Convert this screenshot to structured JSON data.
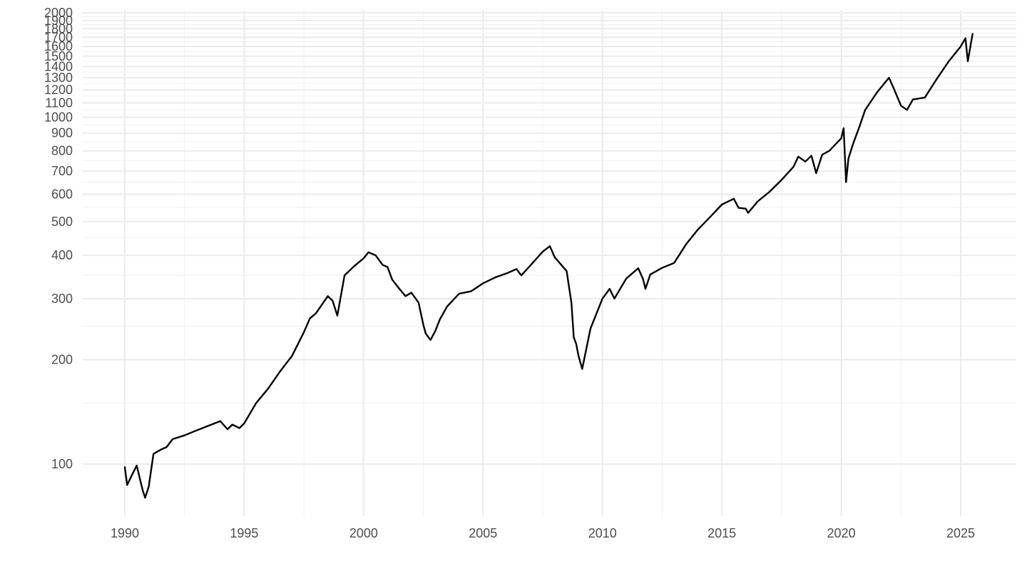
{
  "chart_data": {
    "type": "line",
    "title": "",
    "xlabel": "",
    "ylabel": "",
    "y_scale": "log",
    "grid": true,
    "legend": "none",
    "xlim": [
      1988.2,
      2027.3
    ],
    "ylim": [
      80,
      2020
    ],
    "x_ticks": [
      {
        "value": 1990,
        "label": "1990"
      },
      {
        "value": 1995,
        "label": "1995"
      },
      {
        "value": 2000,
        "label": "2000"
      },
      {
        "value": 2005,
        "label": "2005"
      },
      {
        "value": 2010,
        "label": "2010"
      },
      {
        "value": 2015,
        "label": "2015"
      },
      {
        "value": 2020,
        "label": "2020"
      },
      {
        "value": 2025,
        "label": "2025"
      }
    ],
    "x_minor_ticks": [
      1992.5,
      1997.5,
      2002.5,
      2007.5,
      2012.5,
      2017.5,
      2022.5,
      2027.5
    ],
    "y_ticks": [
      {
        "value": 100,
        "label": "100"
      },
      {
        "value": 200,
        "label": "200"
      },
      {
        "value": 300,
        "label": "300"
      },
      {
        "value": 400,
        "label": "400"
      },
      {
        "value": 500,
        "label": "500"
      },
      {
        "value": 600,
        "label": "600"
      },
      {
        "value": 700,
        "label": "700"
      },
      {
        "value": 800,
        "label": "800"
      },
      {
        "value": 900,
        "label": "900"
      },
      {
        "value": 1000,
        "label": "1000"
      },
      {
        "value": 1100,
        "label": "1100"
      },
      {
        "value": 1200,
        "label": "1200"
      },
      {
        "value": 1300,
        "label": "1300"
      },
      {
        "value": 1400,
        "label": "1400"
      },
      {
        "value": 1500,
        "label": "1500"
      },
      {
        "value": 1600,
        "label": "1600"
      },
      {
        "value": 1700,
        "label": "1700"
      },
      {
        "value": 1800,
        "label": "1800"
      },
      {
        "value": 1900,
        "label": "1900"
      },
      {
        "value": 2000,
        "label": "2000"
      }
    ],
    "y_minor_ticks": [
      150,
      250,
      350,
      450,
      550,
      650,
      750,
      850,
      950,
      1050,
      1150,
      1250,
      1350,
      1450,
      1550,
      1650,
      1750,
      1850,
      1950
    ],
    "series": [
      {
        "color": "#000000",
        "x": [
          1990.0,
          1990.1,
          1990.3,
          1990.5,
          1990.75,
          1990.85,
          1991.0,
          1991.2,
          1991.5,
          1991.75,
          1992.0,
          1992.5,
          1993.0,
          1993.5,
          1994.0,
          1994.3,
          1994.5,
          1994.8,
          1995.0,
          1995.5,
          1996.0,
          1996.5,
          1997.0,
          1997.5,
          1997.75,
          1998.0,
          1998.5,
          1998.7,
          1998.9,
          1999.2,
          1999.6,
          2000.0,
          2000.2,
          2000.5,
          2000.8,
          2001.0,
          2001.2,
          2001.5,
          2001.75,
          2002.0,
          2002.3,
          2002.5,
          2002.6,
          2002.8,
          2003.0,
          2003.2,
          2003.5,
          2004.0,
          2004.5,
          2005.0,
          2005.5,
          2006.0,
          2006.4,
          2006.6,
          2007.0,
          2007.5,
          2007.8,
          2008.0,
          2008.5,
          2008.7,
          2008.8,
          2008.9,
          2009.0,
          2009.15,
          2009.5,
          2010.0,
          2010.3,
          2010.5,
          2011.0,
          2011.5,
          2011.7,
          2011.8,
          2012.0,
          2012.5,
          2013.0,
          2013.5,
          2014.0,
          2014.5,
          2015.0,
          2015.5,
          2015.7,
          2016.0,
          2016.1,
          2016.5,
          2017.0,
          2017.5,
          2018.0,
          2018.2,
          2018.5,
          2018.75,
          2018.95,
          2019.2,
          2019.5,
          2020.0,
          2020.1,
          2020.2,
          2020.3,
          2020.5,
          2020.75,
          2021.0,
          2021.5,
          2022.0,
          2022.2,
          2022.5,
          2022.75,
          2023.0,
          2023.5,
          2024.0,
          2024.5,
          2025.0,
          2025.2,
          2025.3,
          2025.5
        ],
        "y": [
          98,
          87,
          93,
          99,
          84,
          80,
          86,
          107,
          110,
          112,
          118,
          121,
          125,
          129,
          133,
          126,
          130,
          127,
          131,
          150,
          165,
          185,
          205,
          240,
          263,
          272,
          305,
          296,
          268,
          350,
          372,
          392,
          408,
          400,
          375,
          370,
          340,
          320,
          305,
          312,
          292,
          252,
          238,
          228,
          242,
          262,
          285,
          310,
          315,
          332,
          345,
          355,
          365,
          350,
          375,
          410,
          425,
          395,
          360,
          292,
          232,
          222,
          205,
          188,
          246,
          300,
          320,
          300,
          343,
          367,
          342,
          320,
          352,
          368,
          380,
          430,
          475,
          515,
          560,
          582,
          548,
          545,
          530,
          572,
          610,
          660,
          720,
          770,
          745,
          775,
          690,
          780,
          800,
          870,
          930,
          650,
          760,
          840,
          935,
          1050,
          1180,
          1300,
          1210,
          1080,
          1050,
          1125,
          1140,
          1290,
          1450,
          1600,
          1690,
          1450,
          1740
        ]
      }
    ]
  }
}
